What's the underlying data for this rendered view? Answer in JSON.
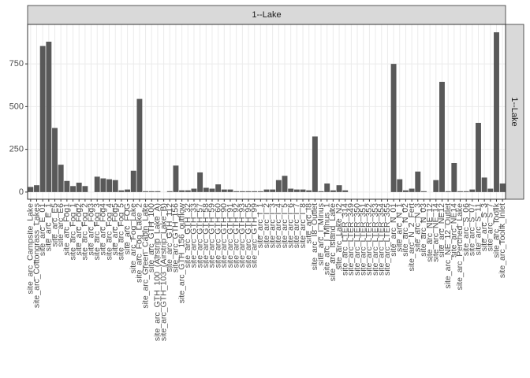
{
  "chart_data": {
    "type": "bar",
    "facet": "1--Lake",
    "facet_row": "1--Lake",
    "categories": [
      "site_arc_Campsite_Lake",
      "site_arc_Cottongrass_Lakes",
      "site_arc_E_01",
      "site_arc_E_1",
      "site_arc_E5",
      "site_arc_E6",
      "site_arc_Fog1",
      "site_arc_Fog_1",
      "site_arc_Fog2",
      "site_arc_Fog_2",
      "site_arc_Fog3",
      "site_arc_Fog_3",
      "site_arc_Fog4",
      "site_arc_Fog_4",
      "site_arc_Fog5",
      "site_arc_Fog_5",
      "site_arc_FOG",
      "site_arc_Fog_Lake",
      "site_arc_Fog_Lake_2",
      "site_arc_Green_Cabin_Lake",
      "site_arc_GTH_100",
      "site_arc_GTH_100_(Airstrip_Lake_A)",
      "site_arc_GTH_103_(Airstrip_Lake_B)",
      "site_arc_GTH_112",
      "site_arc_GTH_156",
      "site_arc_GTH_156_outflow",
      "site_arc_GTH_32",
      "site_arc_GTH_33",
      "site_arc_GTH_57",
      "site_arc_GTH_58",
      "site_arc_GTH_59",
      "site_arc_GTH_60",
      "site_arc_GTH_90",
      "site_arc_GTH_91",
      "site_arc_GTH_92",
      "site_arc_GTH_93",
      "site_arc_GTH_95",
      "site_arc_GTH_99",
      "site_arc_I_1",
      "site_arc_I_2",
      "site_arc_I_3",
      "site_arc_I_4",
      "site_arc_I_5",
      "site_arc_I_6",
      "site_arc_I_7",
      "site_arc_I_8",
      "site_arc_I8",
      "site_arc_I8_Outlet",
      "site_arc_I_Minus",
      "site_arc_I_Minus_1",
      "site_arc_Island_Lake",
      "site_arc_Lake_N2",
      "site_arc_LTER_314",
      "site_arc_LTER_349",
      "site_arc_LTER_350",
      "site_arc_LTER_351",
      "site_arc_LTER_352",
      "site_arc_LTER_353",
      "site_arc_LTER_354",
      "site_arc_LTER_355",
      "site_arc_N_01",
      "site_arc_N_1",
      "site_arc_N_02",
      "site_arc_N_2_Fert",
      "site_arc_N_3",
      "site_arc_N_03",
      "site_arc_NE_12",
      "site_arc_NE_14",
      "site_arc_NE12",
      "site_arc_NE_12_Outlet",
      "site_arc_NE14",
      "site_arc_Perched_Lake",
      "site_arc_S_06",
      "site_arc_S_07",
      "site_arc_S_11",
      "site_arc_S_3",
      "site_arc_S_7",
      "site_arc_Toolik",
      "site_arc_Toolik_Inlet"
    ],
    "values": [
      30,
      40,
      855,
      880,
      375,
      160,
      65,
      35,
      55,
      35,
      0,
      90,
      80,
      75,
      70,
      10,
      15,
      125,
      545,
      5,
      5,
      5,
      0,
      5,
      155,
      10,
      10,
      20,
      115,
      25,
      20,
      45,
      15,
      15,
      5,
      5,
      5,
      5,
      5,
      15,
      15,
      70,
      95,
      20,
      15,
      15,
      10,
      325,
      5,
      50,
      10,
      40,
      10,
      0,
      0,
      0,
      0,
      0,
      0,
      0,
      750,
      75,
      10,
      20,
      120,
      5,
      0,
      70,
      645,
      5,
      170,
      5,
      5,
      15,
      405,
      85,
      20,
      935,
      50
    ],
    "color": "#595959",
    "ylim": [
      -42,
      981
    ],
    "yticks": [
      0,
      250,
      500,
      750
    ],
    "grid": true
  }
}
